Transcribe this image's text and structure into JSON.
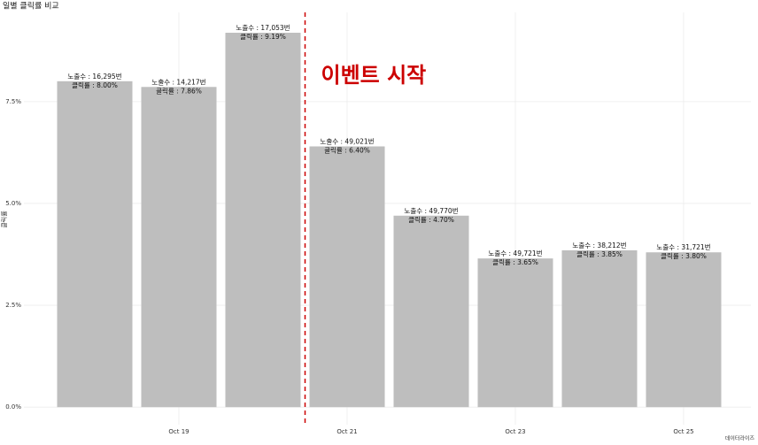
{
  "chart_data": {
    "type": "bar",
    "title": "일별 클릭률 비교",
    "y_label": "클릭률",
    "caption": "데이터라이즈",
    "categories": [
      null,
      "Oct 19",
      null,
      "Oct 21",
      null,
      "Oct 23",
      null,
      "Oct 25"
    ],
    "values": [
      8.0,
      7.86,
      9.19,
      6.4,
      4.7,
      3.65,
      3.85,
      3.8
    ],
    "value_labels": [
      "클릭률 : 8.00%",
      "클릭률 : 7.86%",
      "클릭률 : 9.19%",
      "클릭률 : 6.40%",
      "클릭률 : 4.70%",
      "클릭률 : 3.65%",
      "클릭률 : 3.85%",
      "클릭률 : 3.80%"
    ],
    "impression_labels": [
      "노출수 : 16,295번",
      "노출수 : 14,217번",
      "노출수 : 17,053번",
      "노출수 : 49,021번",
      "노출수 : 49,770번",
      "노출수 : 49,721번",
      "노출수 : 38,212번",
      "노출수 : 31,721번"
    ],
    "color": "#bebebe",
    "ylim": [
      -0.43,
      9.69
    ],
    "yticks": [
      {
        "value": 0,
        "label": "0.0%"
      },
      {
        "value": 2.5,
        "label": "2.5%"
      },
      {
        "value": 5,
        "label": "5.0%"
      },
      {
        "value": 7.5,
        "label": "7.5%"
      }
    ],
    "grid": true,
    "annotation": {
      "text": "이벤트 시작",
      "color": "#cc0000"
    }
  }
}
